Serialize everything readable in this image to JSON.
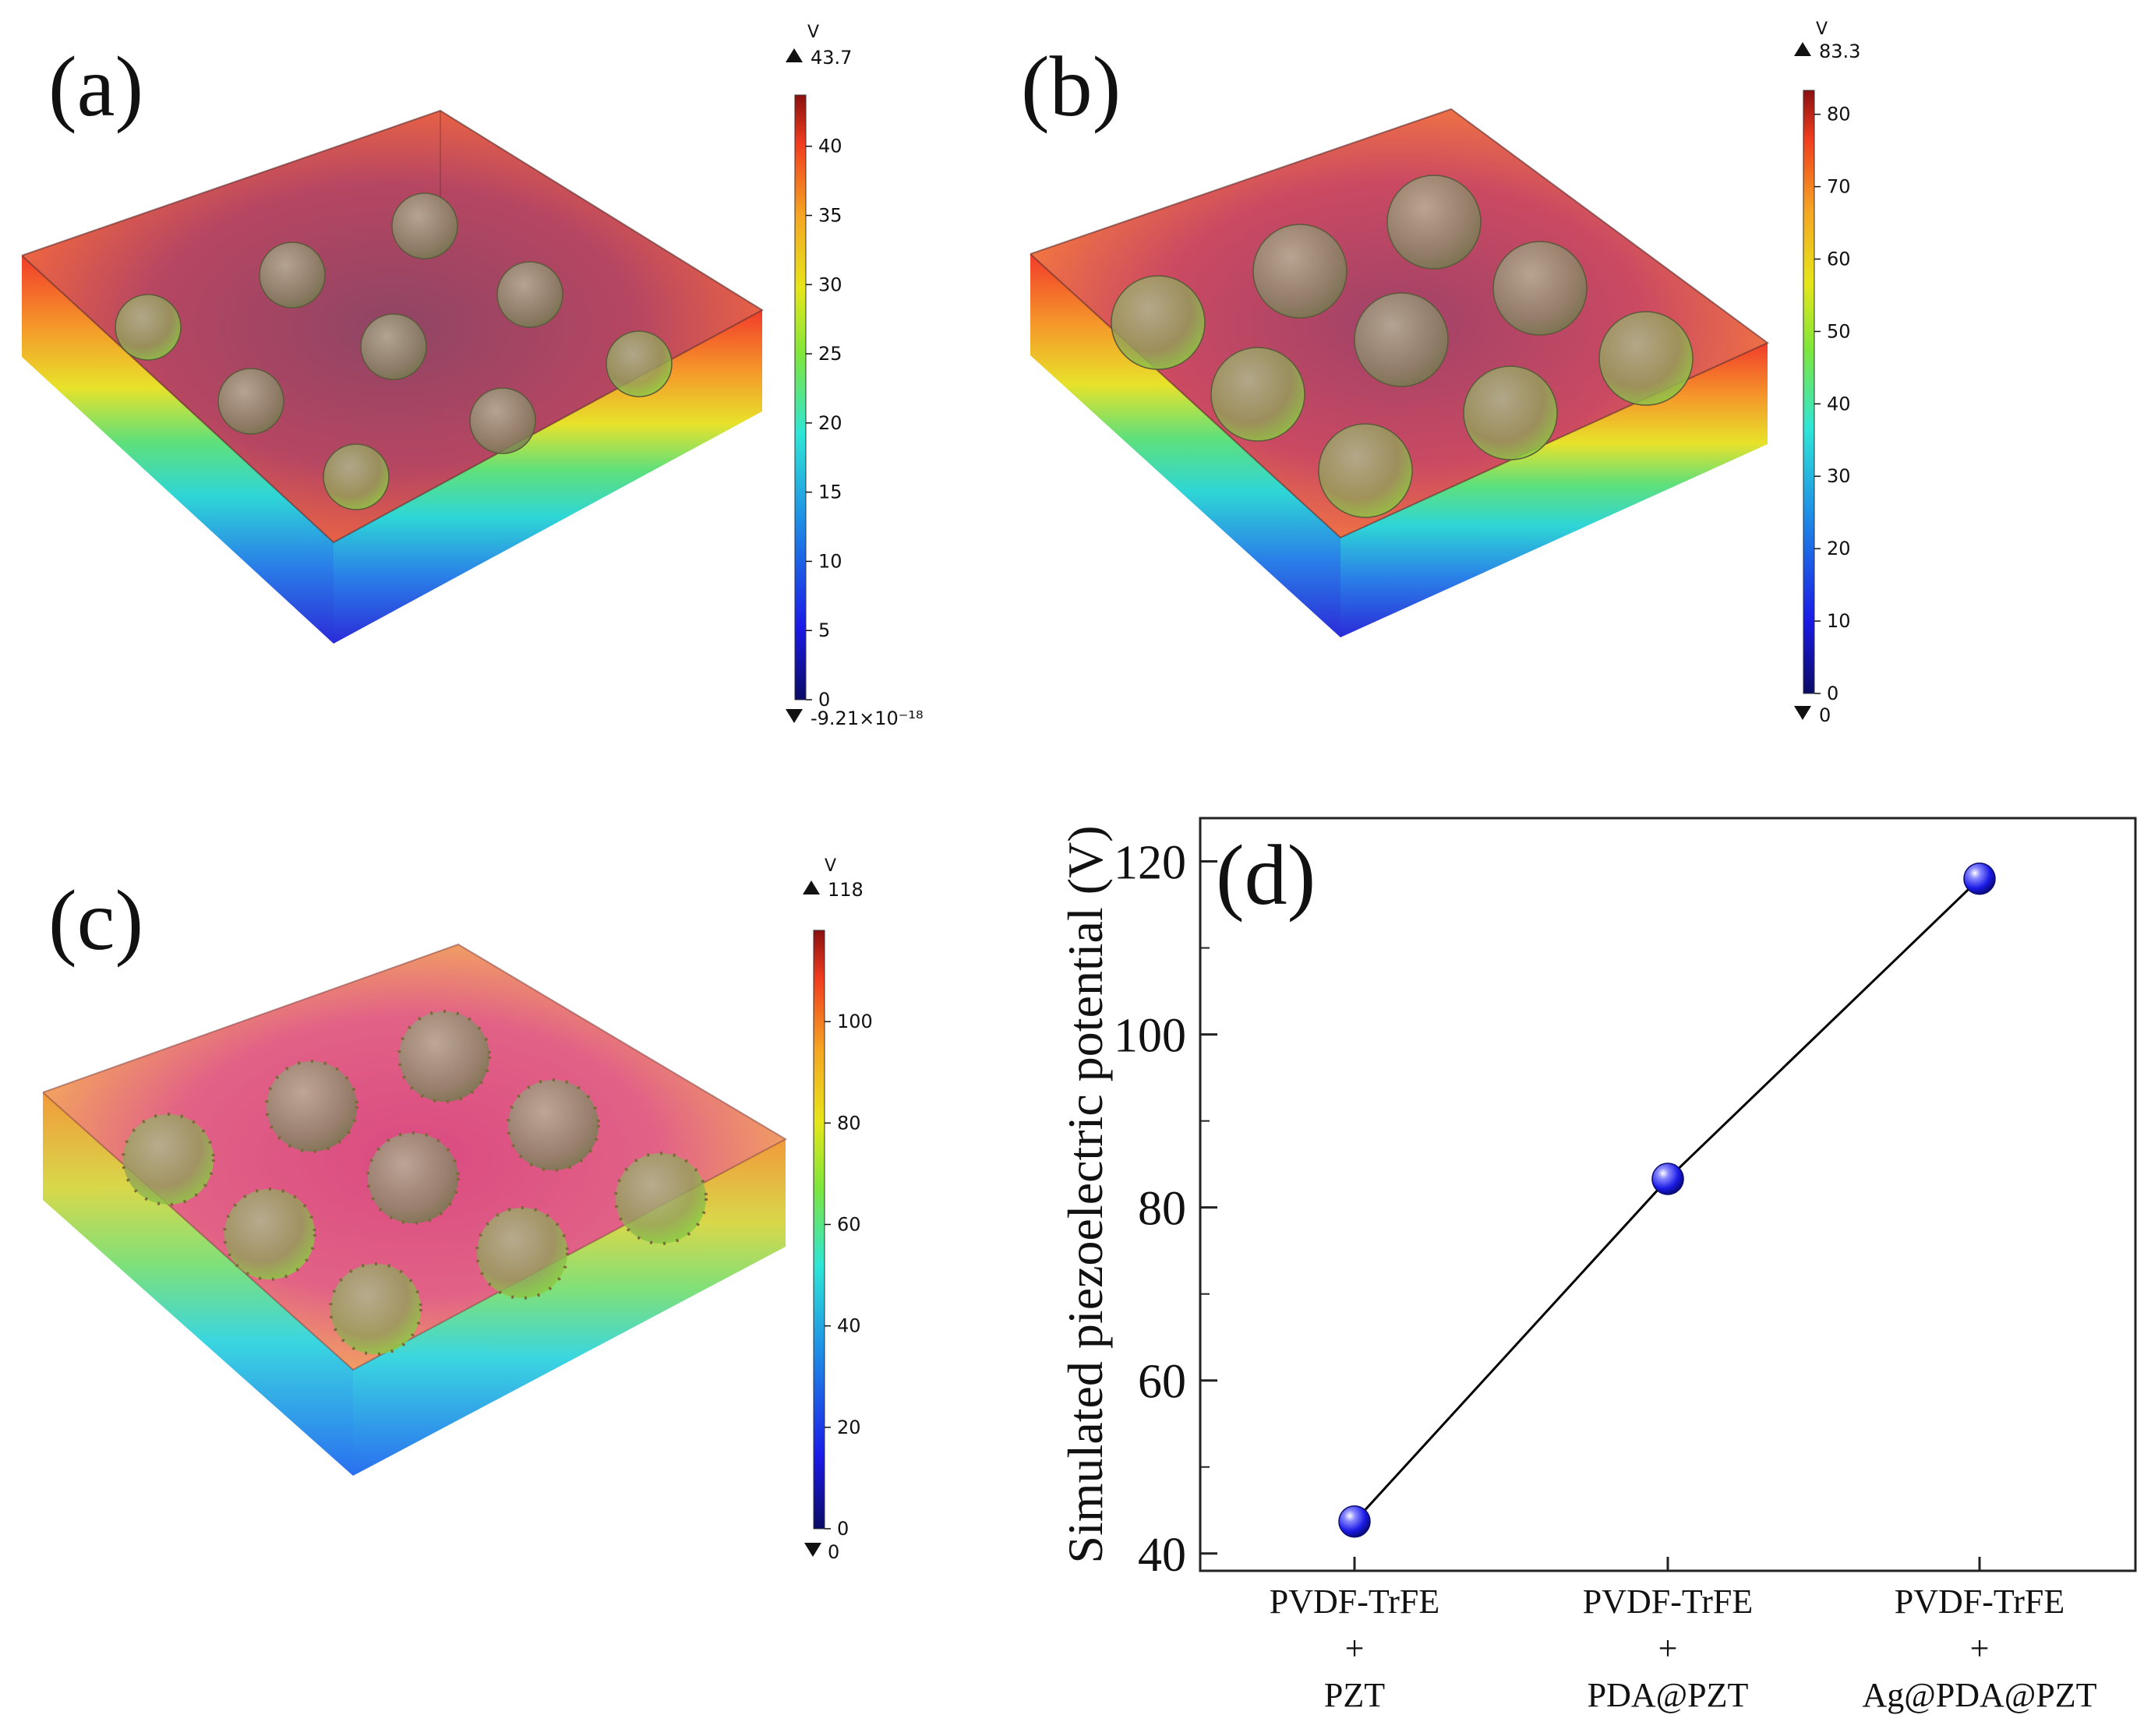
{
  "panels": {
    "a": {
      "letter": "(a)",
      "unit": "V",
      "max_label": "43.7",
      "min_label": "-9.21×10⁻¹⁸",
      "ticks": [
        0,
        5,
        10,
        15,
        20,
        25,
        30,
        35,
        40
      ],
      "range": [
        0,
        43.7
      ],
      "sphere_count": 9,
      "sphere_shell": "none"
    },
    "b": {
      "letter": "(b)",
      "unit": "V",
      "max_label": "83.3",
      "min_label": "0",
      "ticks": [
        0,
        10,
        20,
        30,
        40,
        50,
        60,
        70,
        80
      ],
      "range": [
        0,
        83.3
      ],
      "sphere_count": 9,
      "sphere_shell": "PDA"
    },
    "c": {
      "letter": "(c)",
      "unit": "V",
      "max_label": "118",
      "min_label": "0",
      "ticks": [
        0,
        20,
        40,
        60,
        80,
        100
      ],
      "range": [
        0,
        118
      ],
      "sphere_count": 9,
      "sphere_shell": "Ag-decorated"
    }
  },
  "colormap": [
    "#0b0b66",
    "#1a1ae6",
    "#1e90e6",
    "#2ee6d6",
    "#7ee63c",
    "#e6e61a",
    "#f5a623",
    "#f03c1e",
    "#8b1010"
  ],
  "chart_data": {
    "type": "line",
    "panel_letter": "(d)",
    "categories": [
      [
        "PVDF-TrFE",
        "+",
        "PZT"
      ],
      [
        "PVDF-TrFE",
        "+",
        "PDA@PZT"
      ],
      [
        "PVDF-TrFE",
        "+",
        "Ag@PDA@PZT"
      ]
    ],
    "values": [
      43.7,
      83.3,
      118
    ],
    "ylabel": "Simulated piezoelectric potential (V)",
    "xlabel": "",
    "ylim": [
      38,
      125
    ],
    "yticks": [
      40,
      60,
      80,
      100,
      120
    ],
    "marker_color": "#1a1ae6",
    "line_color": "#000000"
  }
}
